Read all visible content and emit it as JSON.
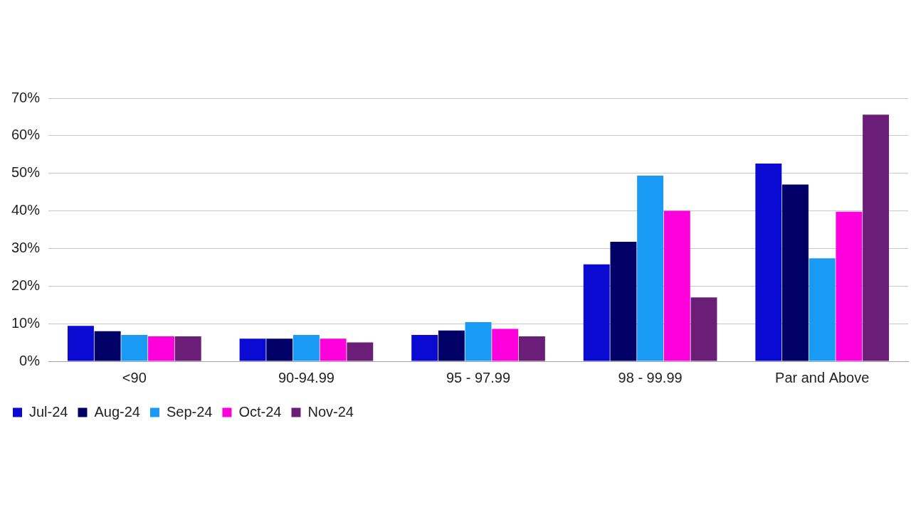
{
  "chart_data": {
    "type": "bar",
    "categories": [
      "<90",
      "90-94.99",
      "95 - 97.99",
      "98 - 99.99",
      "Par and Above"
    ],
    "series": [
      {
        "name": "Jul-24",
        "color": "#0A0AD2",
        "values": [
          9.4,
          6.0,
          7.0,
          25.8,
          52.6
        ]
      },
      {
        "name": "Aug-24",
        "color": "#000066",
        "values": [
          8.0,
          6.0,
          8.2,
          31.8,
          47.0
        ]
      },
      {
        "name": "Sep-24",
        "color": "#199BF5",
        "values": [
          7.0,
          7.0,
          10.4,
          49.4,
          27.4
        ]
      },
      {
        "name": "Oct-24",
        "color": "#FF00DD",
        "values": [
          6.6,
          6.0,
          8.6,
          40.0,
          39.8
        ]
      },
      {
        "name": "Nov-24",
        "color": "#6A1E78",
        "values": [
          6.6,
          5.0,
          6.6,
          17.0,
          65.6
        ]
      }
    ],
    "ylim": [
      0,
      70
    ],
    "yticks": [
      {
        "value": 0,
        "label": "0%"
      },
      {
        "value": 10,
        "label": "10%"
      },
      {
        "value": 20,
        "label": "20%"
      },
      {
        "value": 30,
        "label": "30%"
      },
      {
        "value": 40,
        "label": "40%"
      },
      {
        "value": 50,
        "label": "50%"
      },
      {
        "value": 60,
        "label": "60%"
      },
      {
        "value": 70,
        "label": "70%"
      }
    ],
    "grid": true,
    "legend": "bottom-left"
  }
}
